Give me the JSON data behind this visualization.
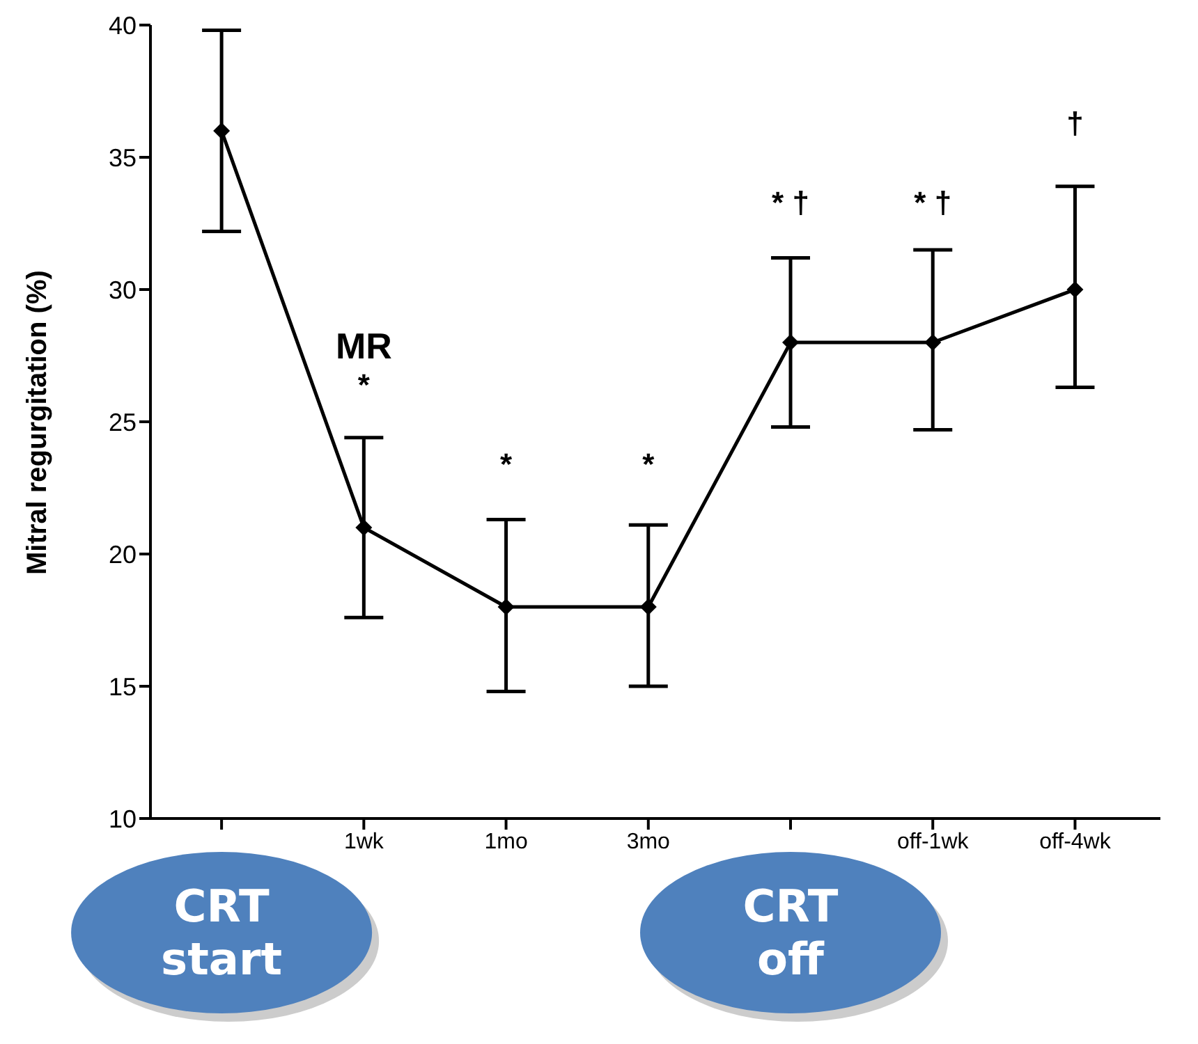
{
  "chart_data": {
    "type": "line",
    "ylabel": "Mitral regurgitation (%)",
    "categories": [
      null,
      "1wk",
      "1mo",
      "3mo",
      null,
      "off-1wk",
      "off-4wk"
    ],
    "series": [
      {
        "color": "#000000",
        "values": [
          36,
          21,
          18,
          18,
          28,
          28,
          30
        ],
        "errors": [
          [
            32.2,
            39.8
          ],
          [
            17.6,
            24.4
          ],
          [
            14.8,
            21.3
          ],
          [
            15,
            21.1
          ],
          [
            24.8,
            31.2
          ],
          [
            24.7,
            31.5
          ],
          [
            26.3,
            33.9
          ]
        ]
      }
    ],
    "ylim": [
      10,
      40
    ],
    "yticks": [
      10,
      15,
      20,
      25,
      30,
      35,
      40
    ],
    "marker": "diamond",
    "line_style": "solid",
    "annotations": [
      "MR",
      "CRT start",
      "CRT off",
      "*",
      "*",
      "*",
      "* †",
      "* †",
      "†"
    ]
  }
}
